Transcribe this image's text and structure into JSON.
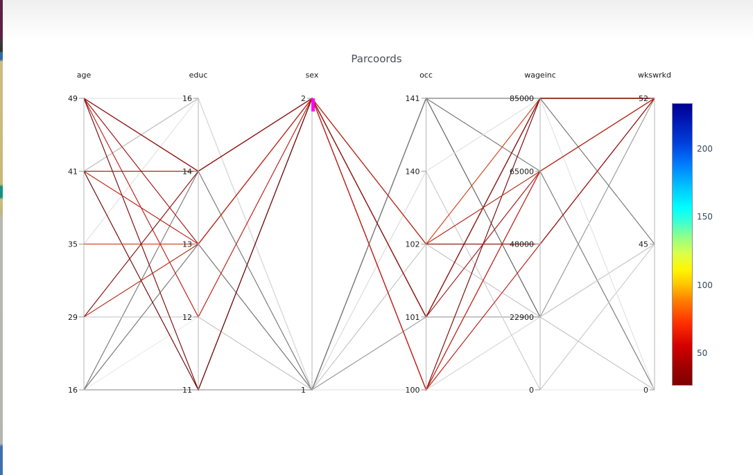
{
  "chart_data": {
    "type": "line",
    "variant": "parallel-coordinates",
    "title": "Parcoords",
    "grid": false,
    "axes": [
      {
        "name": "age",
        "ticks": [
          {
            "label": "49",
            "pos": 0
          },
          {
            "label": "41",
            "pos": 0.25
          },
          {
            "label": "35",
            "pos": 0.5
          },
          {
            "label": "29",
            "pos": 0.75
          },
          {
            "label": "16",
            "pos": 1
          }
        ]
      },
      {
        "name": "educ",
        "ticks": [
          {
            "label": "16",
            "pos": 0
          },
          {
            "label": "14",
            "pos": 0.25
          },
          {
            "label": "13",
            "pos": 0.5
          },
          {
            "label": "12",
            "pos": 0.75
          },
          {
            "label": "11",
            "pos": 1
          }
        ]
      },
      {
        "name": "sex",
        "ticks": [
          {
            "label": "2",
            "pos": 0
          },
          {
            "label": "1",
            "pos": 1
          }
        ]
      },
      {
        "name": "occ",
        "ticks": [
          {
            "label": "141",
            "pos": 0
          },
          {
            "label": "140",
            "pos": 0.25
          },
          {
            "label": "102",
            "pos": 0.5
          },
          {
            "label": "101",
            "pos": 0.75
          },
          {
            "label": "100",
            "pos": 1
          }
        ]
      },
      {
        "name": "wageinc",
        "ticks": [
          {
            "label": "85000",
            "pos": 0
          },
          {
            "label": "65000",
            "pos": 0.25
          },
          {
            "label": "48000",
            "pos": 0.5
          },
          {
            "label": "22900",
            "pos": 0.75
          },
          {
            "label": "0",
            "pos": 1
          }
        ]
      },
      {
        "name": "wkswrkd",
        "ticks": [
          {
            "label": "52",
            "pos": 0
          },
          {
            "label": "45",
            "pos": 0.5
          },
          {
            "label": "0",
            "pos": 1
          }
        ]
      }
    ],
    "lines": [
      {
        "values": [
          "41",
          "16",
          "1",
          "141",
          "22900",
          "45"
        ],
        "color": "#636363"
      },
      {
        "values": [
          "16",
          "14",
          "1",
          "141",
          "65000",
          "0"
        ],
        "color": "#7d7d7d"
      },
      {
        "values": [
          "16",
          "11",
          "1",
          "101",
          "22900",
          "52"
        ],
        "color": "#9b9b9b"
      },
      {
        "values": [
          "49",
          "13",
          "1",
          "100",
          "22900",
          "45"
        ],
        "color": "#d8d8d8"
      },
      {
        "values": [
          "41",
          "16",
          "1",
          "140",
          "0",
          "45"
        ],
        "color": "#cdcdcd"
      },
      {
        "values": [
          "35",
          "16",
          "1",
          "140",
          "85000",
          "0"
        ],
        "color": "#e2e2e2"
      },
      {
        "values": [
          "16",
          "12",
          "1",
          "100",
          "0",
          "0"
        ],
        "color": "#ececec"
      },
      {
        "values": [
          "29",
          "12",
          "1",
          "102",
          "22900",
          "0"
        ],
        "color": "#c6c6c6"
      },
      {
        "values": [
          "16",
          "13",
          "1",
          "141",
          "85000",
          "45"
        ],
        "color": "#7a7a7a"
      },
      {
        "values": [
          "49",
          "14",
          "2",
          "100",
          "65000",
          "52"
        ],
        "color": "#b22222"
      },
      {
        "values": [
          "49",
          "14",
          "2",
          "101",
          "85000",
          "52"
        ],
        "color": "#8b1010"
      },
      {
        "values": [
          "49",
          "13",
          "2",
          "101",
          "65000",
          "52"
        ],
        "color": "#a61e1e"
      },
      {
        "values": [
          "49",
          "12",
          "2",
          "100",
          "48000",
          "52"
        ],
        "color": "#c0241c"
      },
      {
        "values": [
          "49",
          "11",
          "2",
          "100",
          "85000",
          "52"
        ],
        "color": "#7d1111"
      },
      {
        "values": [
          "41",
          "14",
          "2",
          "102",
          "48000",
          "52"
        ],
        "color": "#951515"
      },
      {
        "values": [
          "41",
          "13",
          "2",
          "100",
          "65000",
          "52"
        ],
        "color": "#c22a1e"
      },
      {
        "values": [
          "41",
          "11",
          "2",
          "101",
          "85000",
          "52"
        ],
        "color": "#6f0f0f"
      },
      {
        "values": [
          "35",
          "13",
          "2",
          "102",
          "85000",
          "52"
        ],
        "color": "#d44a20"
      },
      {
        "values": [
          "29",
          "14",
          "2",
          "101",
          "85000",
          "52"
        ],
        "color": "#8e1a14"
      },
      {
        "values": [
          "29",
          "13",
          "2",
          "102",
          "65000",
          "52"
        ],
        "color": "#b5301f"
      }
    ],
    "brush": {
      "axis": "sex",
      "at_tick": "2",
      "color": "#ff00ff"
    },
    "colorbar": {
      "colormap": "jet",
      "ticks": [
        {
          "label": "200",
          "pos": 0.162
        },
        {
          "label": "150",
          "pos": 0.402
        },
        {
          "label": "100",
          "pos": 0.645
        },
        {
          "label": "50",
          "pos": 0.885
        }
      ]
    }
  }
}
